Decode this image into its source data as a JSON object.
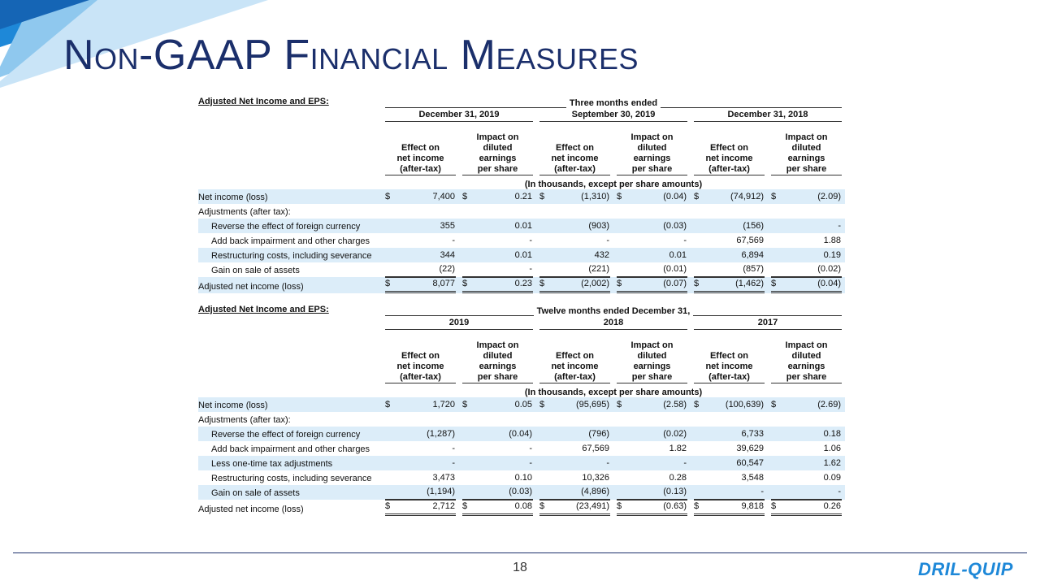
{
  "header": {
    "title": "Non-GAAP Financial Measures"
  },
  "tables": [
    {
      "label": "Adjusted Net Income and EPS:",
      "period": "Three months ended",
      "columns": [
        "December 31, 2019",
        "September 30, 2019",
        "December 31, 2018"
      ],
      "headers": [
        [
          "Effect on",
          "net income",
          "(after-tax)"
        ],
        [
          "Impact on",
          "diluted",
          "earnings",
          "per share"
        ],
        [
          "Effect on",
          "net income",
          "(after-tax)"
        ],
        [
          "Impact on",
          "diluted",
          "earnings",
          "per share"
        ],
        [
          "Effect on",
          "net income",
          "(after-tax)"
        ],
        [
          "Impact on",
          "diluted",
          "earnings",
          "per share"
        ]
      ],
      "unit_note": "(In thousands, except per share amounts)",
      "rows": [
        {
          "label": "Net income (loss)",
          "prefix": [
            "$",
            "$",
            "$",
            "$",
            "$",
            "$"
          ],
          "cells": [
            "7,400",
            "0.21",
            "(1,310)",
            "(0.04)",
            "(74,912)",
            "(2.09)"
          ]
        },
        {
          "label": "Adjustments (after tax):"
        },
        {
          "label": "Reverse the effect of foreign currency",
          "cells": [
            "355",
            "0.01",
            "(903)",
            "(0.03)",
            "(156)",
            "-"
          ]
        },
        {
          "label": "Add back impairment and other charges",
          "cells": [
            "-",
            "-",
            "-",
            "-",
            "67,569",
            "1.88"
          ]
        },
        {
          "label": "Restructuring costs, including severance",
          "cells": [
            "344",
            "0.01",
            "432",
            "0.01",
            "6,894",
            "0.19"
          ]
        },
        {
          "label": "Gain on sale of assets",
          "cells": [
            "(22)",
            "-",
            "(221)",
            "(0.01)",
            "(857)",
            "(0.02)"
          ]
        },
        {
          "label": "Adjusted net income (loss)",
          "prefix": [
            "$",
            "$",
            "$",
            "$",
            "$",
            "$"
          ],
          "cells": [
            "8,077",
            "0.23",
            "(2,002)",
            "(0.07)",
            "(1,462)",
            "(0.04)"
          ]
        }
      ]
    },
    {
      "label": "Adjusted Net Income and EPS:",
      "period": "Twelve months ended December 31,",
      "columns": [
        "2019",
        "2018",
        "2017"
      ],
      "headers": [
        [
          "Effect on",
          "net income",
          "(after-tax)"
        ],
        [
          "Impact on",
          "diluted",
          "earnings",
          "per share"
        ],
        [
          "Effect on",
          "net income",
          "(after-tax)"
        ],
        [
          "Impact on",
          "diluted",
          "earnings",
          "per share"
        ],
        [
          "Effect on",
          "net income",
          "(after-tax)"
        ],
        [
          "Impact on",
          "diluted",
          "earnings",
          "per share"
        ]
      ],
      "unit_note": "(In thousands, except per share amounts)",
      "rows": [
        {
          "label": "Net income (loss)",
          "prefix": [
            "$",
            "$",
            "$",
            "$",
            "$",
            "$"
          ],
          "cells": [
            "1,720",
            "0.05",
            "(95,695)",
            "(2.58)",
            "(100,639)",
            "(2.69)"
          ]
        },
        {
          "label": "Adjustments (after tax):"
        },
        {
          "label": "Reverse the effect of foreign currency",
          "cells": [
            "(1,287)",
            "(0.04)",
            "(796)",
            "(0.02)",
            "6,733",
            "0.18"
          ]
        },
        {
          "label": "Add back impairment and other charges",
          "cells": [
            "-",
            "-",
            "67,569",
            "1.82",
            "39,629",
            "1.06"
          ]
        },
        {
          "label": "Less one-time tax adjustments",
          "cells": [
            "-",
            "-",
            "-",
            "-",
            "60,547",
            "1.62"
          ]
        },
        {
          "label": "Restructuring costs, including severance",
          "cells": [
            "3,473",
            "0.10",
            "10,326",
            "0.28",
            "3,548",
            "0.09"
          ]
        },
        {
          "label": "Gain on sale of assets",
          "cells": [
            "(1,194)",
            "(0.03)",
            "(4,896)",
            "(0.13)",
            "-",
            "-"
          ]
        },
        {
          "label": "Adjusted net income (loss)",
          "prefix": [
            "$",
            "$",
            "$",
            "$",
            "$",
            "$"
          ],
          "cells": [
            "2,712",
            "0.08",
            "(23,491)",
            "(0.63)",
            "9,818",
            "0.26"
          ]
        }
      ]
    }
  ],
  "footer": {
    "page": "18",
    "logo": "DRIL-QUIP"
  }
}
